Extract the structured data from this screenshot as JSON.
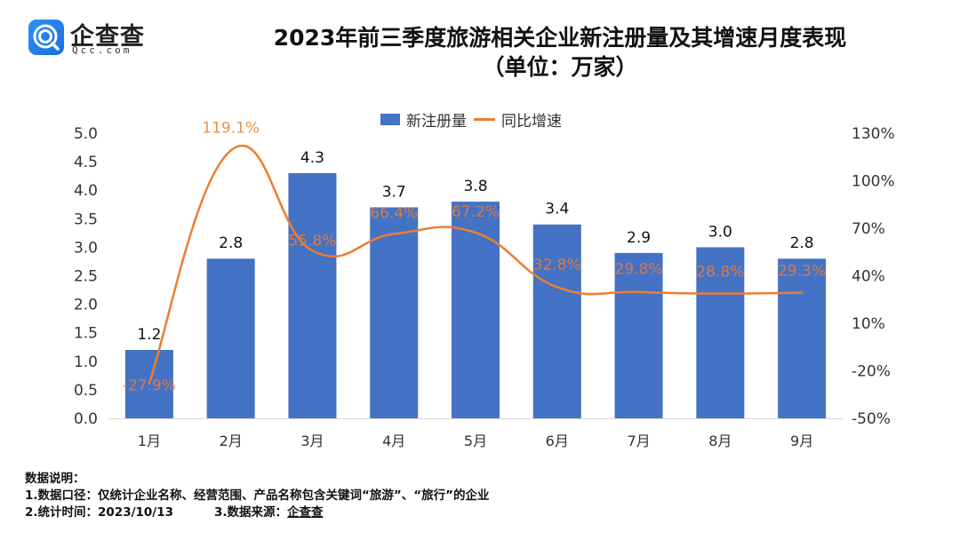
{
  "logo": {
    "name": "企查查",
    "sub": "Qcc.com"
  },
  "header": {
    "title_line1": "2023年前三季度旅游相关企业新注册量及其增速月度表现",
    "title_line2": "（单位：万家）"
  },
  "legend": {
    "bar_label": "新注册量",
    "line_label": "同比增速"
  },
  "colors": {
    "bar": "#4472c4",
    "line": "#ed7d31"
  },
  "notes": {
    "heading": "数据说明：",
    "line1": "1.数据口径：仅统计企业名称、经营范围、产品名称包含关键词“旅游”、“旅行”的企业",
    "line2_a": "2.统计时间：2023/10/13",
    "line2_b": "3.数据来源：",
    "line2_src": "企查查"
  },
  "chart_data": {
    "type": "bar",
    "title": "2023年前三季度旅游相关企业新注册量及其增速月度表现（单位：万家）",
    "categories": [
      "1月",
      "2月",
      "3月",
      "4月",
      "5月",
      "6月",
      "7月",
      "8月",
      "9月"
    ],
    "series": [
      {
        "name": "新注册量",
        "type": "bar",
        "axis": "left",
        "values": [
          1.2,
          2.8,
          4.3,
          3.7,
          3.8,
          3.4,
          2.9,
          3.0,
          2.8
        ],
        "labels": [
          "1.2",
          "2.8",
          "4.3",
          "3.7",
          "3.8",
          "3.4",
          "2.9",
          "3.0",
          "2.8"
        ]
      },
      {
        "name": "同比增速",
        "type": "line",
        "smooth": true,
        "axis": "right",
        "values": [
          -27.9,
          119.1,
          55.8,
          66.4,
          67.2,
          32.8,
          29.8,
          28.8,
          29.3
        ],
        "labels": [
          "-27.9%",
          "119.1%",
          "55.8%",
          "66.4%",
          "67.2%",
          "32.8%",
          "29.8%",
          "28.8%",
          "29.3%"
        ]
      }
    ],
    "y_left": {
      "min": 0,
      "max": 5.0,
      "step": 0.5,
      "ticks": [
        "0.0",
        "0.5",
        "1.0",
        "1.5",
        "2.0",
        "2.5",
        "3.0",
        "3.5",
        "4.0",
        "4.5",
        "5.0"
      ]
    },
    "y_right": {
      "min": -50,
      "max": 130,
      "step": 30,
      "ticks": [
        "-50%",
        "-20%",
        "10%",
        "40%",
        "70%",
        "100%",
        "130%"
      ]
    },
    "xlabel": "",
    "ylabel": "",
    "grid": false,
    "legend_position": "top-center"
  }
}
